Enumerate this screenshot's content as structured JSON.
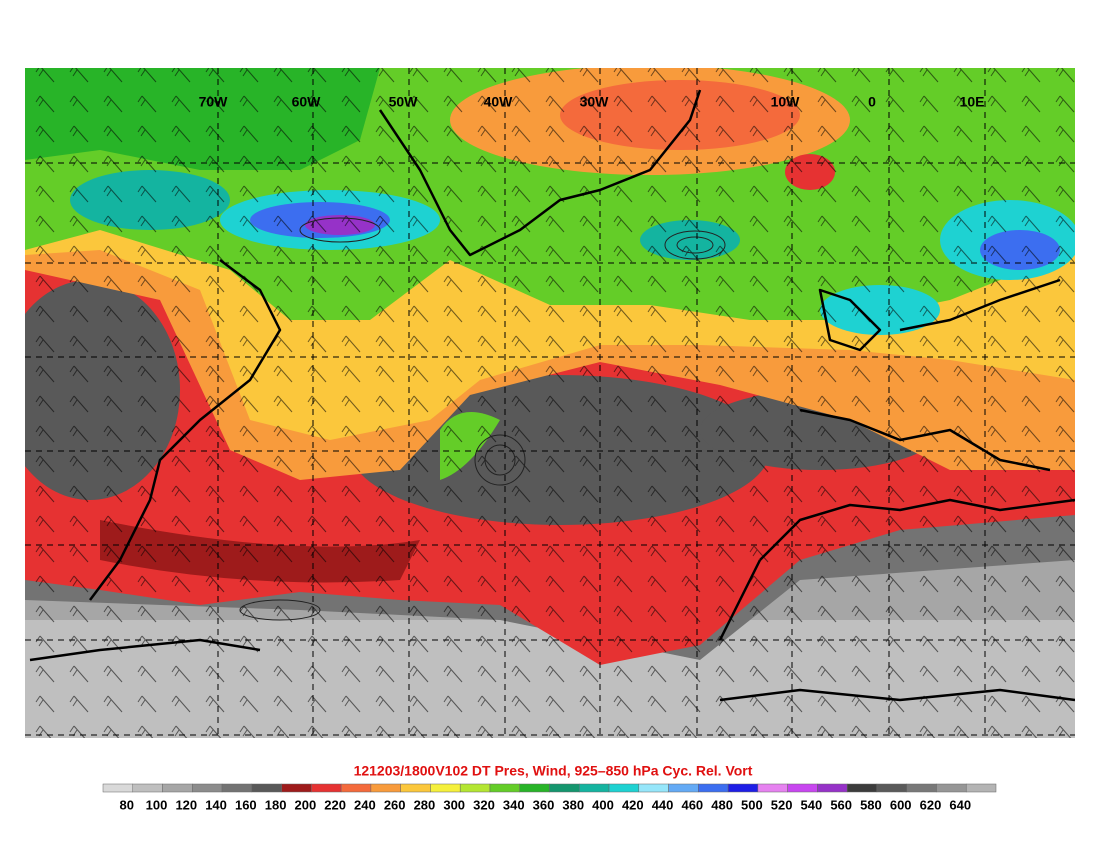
{
  "map": {
    "longitude_labels": [
      "70W",
      "60W",
      "50W",
      "40W",
      "30W",
      "10W",
      "0",
      "10E"
    ],
    "title": "121203/1800V102 DT Pres, Wind, 925–850 hPa Cyc. Rel. Vort"
  },
  "colorbar": {
    "labels": [
      80,
      100,
      120,
      140,
      160,
      180,
      200,
      220,
      240,
      260,
      280,
      300,
      320,
      340,
      360,
      380,
      400,
      420,
      440,
      460,
      480,
      500,
      520,
      540,
      560,
      580,
      600,
      620,
      640
    ],
    "colors": [
      "#d9d9d9",
      "#bfbfbf",
      "#a6a6a6",
      "#8c8c8c",
      "#737373",
      "#595959",
      "#9e1b1b",
      "#e63232",
      "#f46a3c",
      "#f89b3c",
      "#fbc73c",
      "#f5f03c",
      "#b4e632",
      "#64cd28",
      "#28b428",
      "#14966e",
      "#14b4a0",
      "#1ed2d2",
      "#96e6fa",
      "#64aaf5",
      "#3c6ef0",
      "#1e1ee6",
      "#e682f0",
      "#c846f0",
      "#9632c8",
      "#3c3c3c",
      "#5a5a5a",
      "#787878",
      "#969696",
      "#b4b4b4"
    ]
  }
}
